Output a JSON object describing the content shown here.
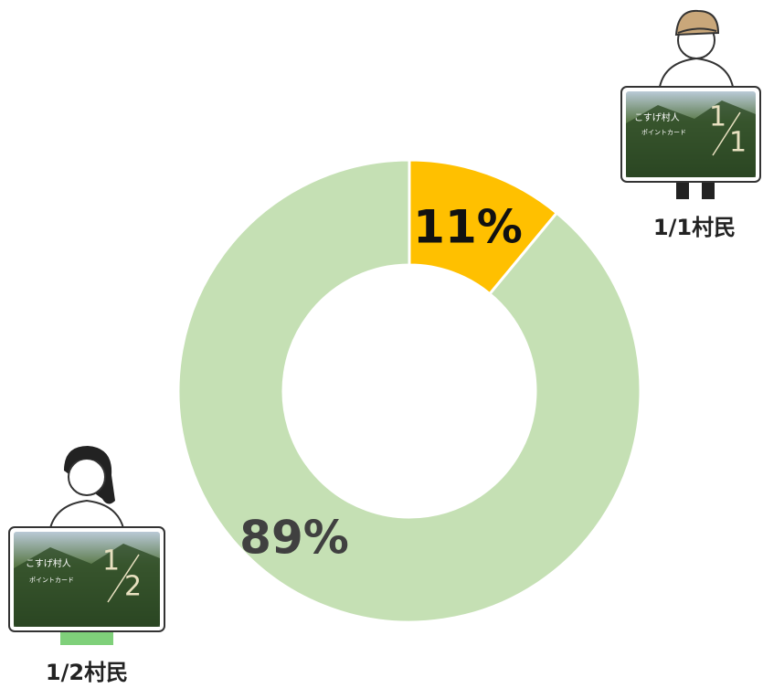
{
  "chart_data": {
    "type": "donut",
    "categories": [
      "1/1村民",
      "1/2村民"
    ],
    "values": [
      11,
      89
    ],
    "value_labels": [
      "11%",
      "89%"
    ],
    "colors": [
      "#FFC000",
      "#C5E0B4"
    ]
  },
  "cards": [
    {
      "title": "こすげ村人",
      "subtitle": "ポイントカード",
      "numerator": "1",
      "denominator": "1"
    },
    {
      "title": "こすげ村人",
      "subtitle": "ポイントカード",
      "numerator": "1",
      "denominator": "2"
    }
  ]
}
